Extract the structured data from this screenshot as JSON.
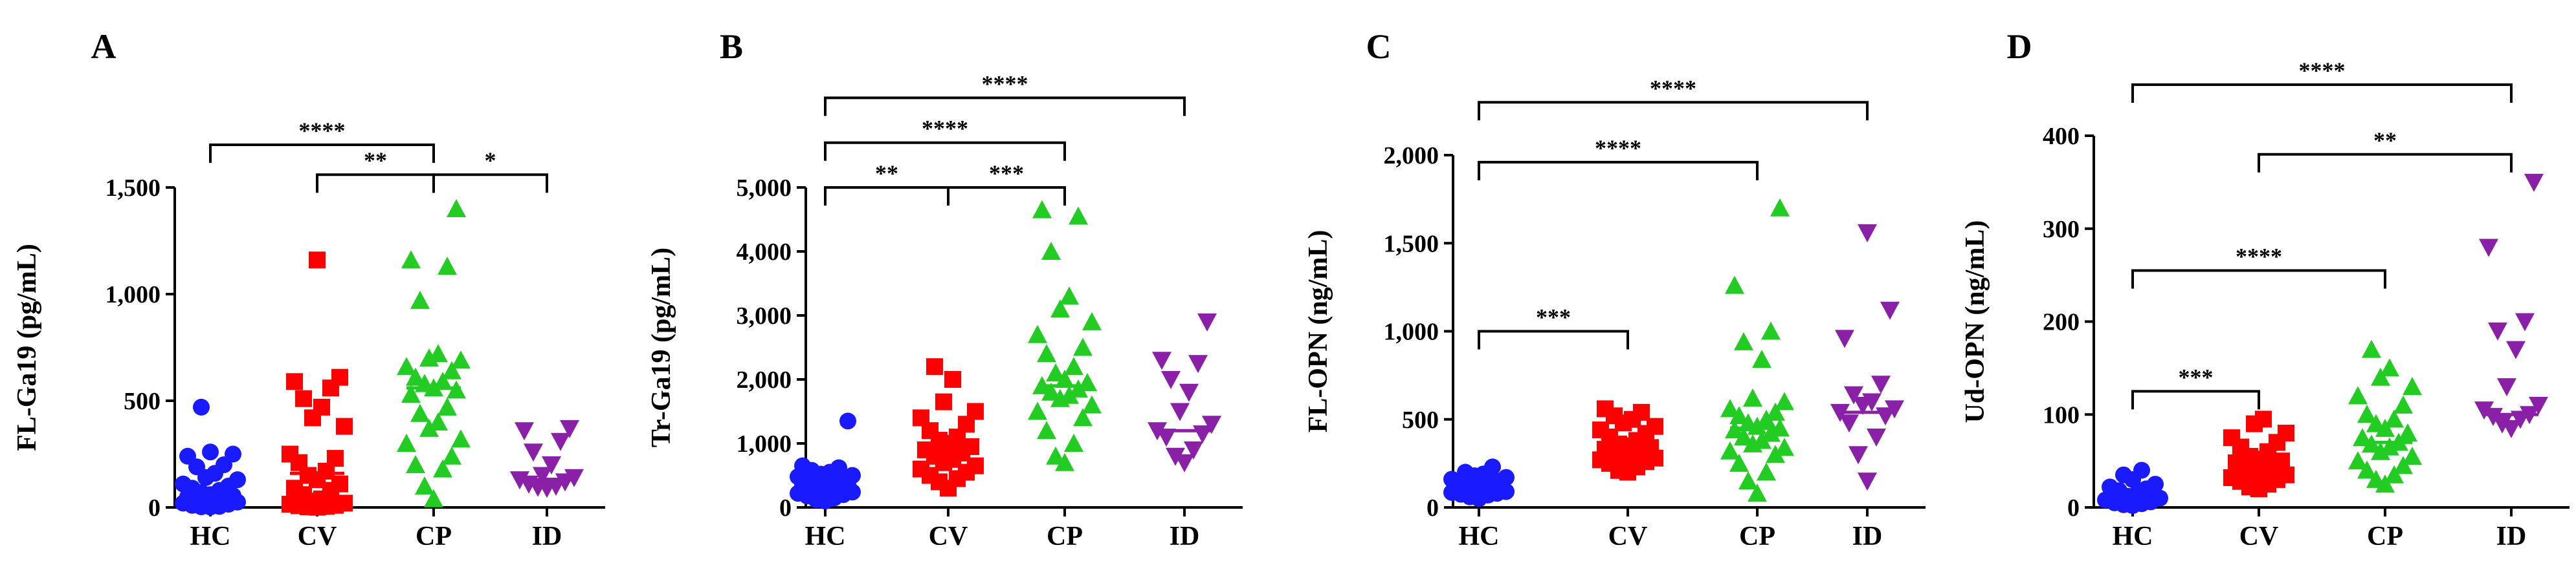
{
  "figure": {
    "panel_letters": [
      "A",
      "B",
      "C",
      "D"
    ]
  },
  "chart_data": [
    {
      "panel": "A",
      "type": "scatter",
      "title": "",
      "xlabel": "",
      "ylabel": "FL-Ga19 (pg/mL)",
      "ylim": [
        0,
        1500
      ],
      "yticks": [
        0,
        500,
        1000,
        1500
      ],
      "ytick_labels": [
        "0",
        "500",
        "1,000",
        "1,500"
      ],
      "categories": [
        "HC",
        "CV",
        "CP",
        "ID"
      ],
      "colors": [
        "#1a1aff",
        "#ff0000",
        "#22cc22",
        "#8a1fa8"
      ],
      "markers": [
        "circle",
        "square",
        "triangle-up",
        "triangle-down"
      ],
      "medians": [
        55,
        160,
        560,
        130
      ],
      "series": [
        {
          "name": "HC",
          "values": [
            470,
            260,
            250,
            240,
            200,
            190,
            160,
            140,
            130,
            110,
            100,
            90,
            80,
            70,
            60,
            55,
            50,
            45,
            40,
            35,
            30,
            25,
            20,
            15,
            10,
            5,
            3,
            2
          ]
        },
        {
          "name": "CV",
          "values": [
            1160,
            610,
            590,
            560,
            510,
            470,
            420,
            380,
            250,
            230,
            210,
            170,
            150,
            130,
            110,
            90,
            80,
            60,
            40,
            30,
            20,
            15,
            10,
            8,
            5,
            3,
            1
          ]
        },
        {
          "name": "CP",
          "values": [
            1400,
            1160,
            1130,
            970,
            720,
            700,
            690,
            660,
            640,
            610,
            590,
            580,
            560,
            550,
            530,
            470,
            440,
            400,
            370,
            320,
            300,
            240,
            200,
            180,
            100,
            40
          ]
        },
        {
          "name": "ID",
          "values": [
            370,
            360,
            310,
            260,
            200,
            150,
            140,
            130,
            120,
            110,
            100,
            95,
            90
          ]
        }
      ],
      "brackets": [
        {
          "from": 0,
          "to": 2,
          "label": "****",
          "y": 1700
        },
        {
          "from": 1,
          "to": 2,
          "label": "**",
          "y": 1560
        },
        {
          "from": 2,
          "to": 3,
          "label": "*",
          "y": 1560
        }
      ]
    },
    {
      "panel": "B",
      "type": "scatter",
      "title": "",
      "xlabel": "",
      "ylabel": "Tr-Ga19 (pg/mL)",
      "ylim": [
        0,
        5000
      ],
      "yticks": [
        0,
        1000,
        2000,
        3000,
        4000,
        5000
      ],
      "ytick_labels": [
        "0",
        "1,000",
        "2,000",
        "3,000",
        "4,000",
        "5,000"
      ],
      "categories": [
        "HC",
        "CV",
        "CP",
        "ID"
      ],
      "colors": [
        "#1a1aff",
        "#ff0000",
        "#22cc22",
        "#8a1fa8"
      ],
      "markers": [
        "circle",
        "square",
        "triangle-up",
        "triangle-down"
      ],
      "medians": [
        350,
        850,
        1900,
        1200
      ],
      "series": [
        {
          "name": "HC",
          "values": [
            1350,
            650,
            620,
            580,
            550,
            520,
            500,
            480,
            460,
            440,
            420,
            400,
            380,
            360,
            340,
            320,
            300,
            280,
            260,
            240,
            220,
            200,
            180,
            150,
            120,
            100
          ]
        },
        {
          "name": "CV",
          "values": [
            2200,
            2000,
            1650,
            1500,
            1400,
            1300,
            1200,
            1100,
            1050,
            1000,
            950,
            900,
            850,
            800,
            750,
            700,
            650,
            600,
            550,
            500,
            450,
            400,
            300
          ]
        },
        {
          "name": "CP",
          "values": [
            4650,
            4550,
            4000,
            3300,
            3100,
            2900,
            2700,
            2500,
            2400,
            2200,
            2100,
            2000,
            1950,
            1900,
            1850,
            1800,
            1750,
            1700,
            1600,
            1500,
            1400,
            1200,
            1000,
            800,
            700
          ]
        },
        {
          "name": "ID",
          "values": [
            2900,
            2300,
            2250,
            2000,
            1800,
            1500,
            1300,
            1200,
            1150,
            1100,
            900,
            800,
            700
          ]
        }
      ],
      "brackets": [
        {
          "from": 0,
          "to": 3,
          "label": "****",
          "y": 6400
        },
        {
          "from": 0,
          "to": 2,
          "label": "****",
          "y": 5700
        },
        {
          "from": 0,
          "to": 1,
          "label": "**",
          "y": 5000
        },
        {
          "from": 1,
          "to": 2,
          "label": "***",
          "y": 5000
        }
      ]
    },
    {
      "panel": "C",
      "type": "scatter",
      "title": "",
      "xlabel": "",
      "ylabel": "FL-OPN (ng/mL)",
      "ylim": [
        0,
        2000
      ],
      "yticks": [
        0,
        500,
        1000,
        1500,
        2000
      ],
      "ytick_labels": [
        "0",
        "500",
        "1,000",
        "1,500",
        "2,000"
      ],
      "categories": [
        "HC",
        "CV",
        "CP",
        "ID"
      ],
      "colors": [
        "#1a1aff",
        "#ff0000",
        "#22cc22",
        "#8a1fa8"
      ],
      "markers": [
        "circle",
        "square",
        "triangle-up",
        "triangle-down"
      ],
      "medians": [
        120,
        340,
        450,
        540
      ],
      "series": [
        {
          "name": "HC",
          "values": [
            230,
            200,
            190,
            180,
            170,
            160,
            150,
            140,
            135,
            130,
            125,
            120,
            115,
            110,
            105,
            100,
            95,
            90,
            85,
            80,
            75,
            70,
            60,
            50
          ]
        },
        {
          "name": "CV",
          "values": [
            560,
            540,
            520,
            500,
            480,
            460,
            440,
            420,
            400,
            380,
            360,
            350,
            340,
            330,
            320,
            310,
            300,
            290,
            280,
            270,
            260,
            250,
            230,
            210,
            200
          ]
        },
        {
          "name": "CP",
          "values": [
            1700,
            1260,
            1000,
            940,
            840,
            620,
            600,
            560,
            540,
            520,
            500,
            480,
            460,
            450,
            440,
            420,
            400,
            380,
            360,
            340,
            320,
            300,
            250,
            200,
            150,
            80
          ]
        },
        {
          "name": "ID",
          "values": [
            1560,
            1120,
            960,
            700,
            640,
            600,
            580,
            560,
            540,
            520,
            480,
            400,
            300,
            150
          ]
        }
      ],
      "brackets": [
        {
          "from": 0,
          "to": 3,
          "label": "****",
          "y": 2300
        },
        {
          "from": 0,
          "to": 2,
          "label": "****",
          "y": 1960
        },
        {
          "from": 0,
          "to": 1,
          "label": "***",
          "y": 1000
        }
      ]
    },
    {
      "panel": "D",
      "type": "scatter",
      "title": "",
      "xlabel": "",
      "ylabel": "Ud-OPN (ng/mL)",
      "ylim": [
        0,
        400
      ],
      "yticks": [
        0,
        100,
        200,
        300,
        400
      ],
      "ytick_labels": [
        "0",
        "100",
        "200",
        "300",
        "400"
      ],
      "categories": [
        "HC",
        "CV",
        "CP",
        "ID"
      ],
      "colors": [
        "#1a1aff",
        "#ff0000",
        "#22cc22",
        "#8a1fa8"
      ],
      "markers": [
        "circle",
        "square",
        "triangle-up",
        "triangle-down"
      ],
      "medians": [
        8,
        45,
        70,
        100
      ],
      "series": [
        {
          "name": "HC",
          "values": [
            40,
            35,
            30,
            25,
            22,
            20,
            18,
            15,
            12,
            10,
            8,
            6,
            5,
            4,
            3,
            2
          ]
        },
        {
          "name": "CV",
          "values": [
            95,
            90,
            80,
            75,
            70,
            65,
            60,
            55,
            52,
            50,
            48,
            45,
            42,
            40,
            38,
            35,
            32,
            30,
            28,
            25,
            22,
            20
          ]
        },
        {
          "name": "CP",
          "values": [
            170,
            150,
            140,
            130,
            120,
            110,
            100,
            95,
            90,
            85,
            80,
            75,
            70,
            68,
            65,
            60,
            55,
            50,
            45,
            40,
            35,
            30,
            25
          ]
        },
        {
          "name": "ID",
          "values": [
            350,
            280,
            200,
            190,
            170,
            130,
            110,
            105,
            100,
            98,
            95,
            90,
            85
          ]
        }
      ],
      "brackets": [
        {
          "from": 0,
          "to": 3,
          "label": "****",
          "y": 455
        },
        {
          "from": 1,
          "to": 3,
          "label": "**",
          "y": 380
        },
        {
          "from": 0,
          "to": 2,
          "label": "****",
          "y": 255
        },
        {
          "from": 0,
          "to": 1,
          "label": "***",
          "y": 125
        }
      ]
    }
  ]
}
